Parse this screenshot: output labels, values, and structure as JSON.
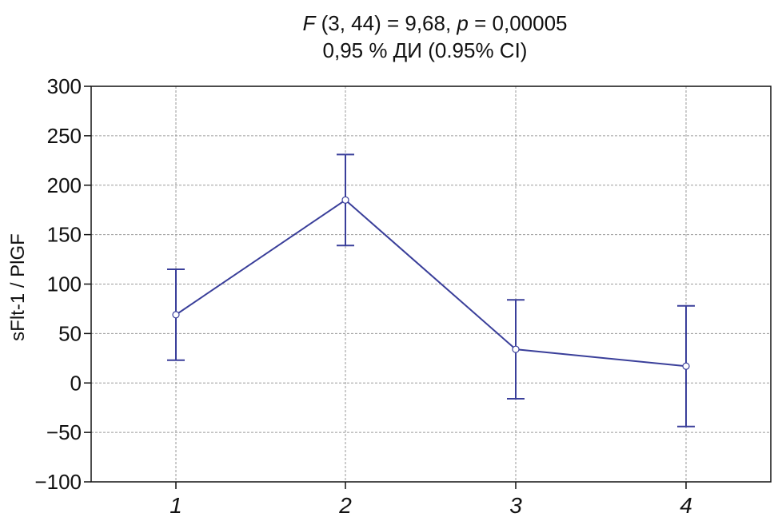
{
  "chart_data": {
    "type": "line",
    "title_line1": {
      "stat_symbol": "F",
      "stat_args": " (3,  44) = 9,68,  ",
      "p_symbol": "p",
      "p_value": " = 0,00005"
    },
    "title_line2": "0,95 % ДИ  (0.95% CI)",
    "xlabel": "",
    "ylabel": "sFlt-1 / PlGF",
    "categories": [
      "1",
      "2",
      "3",
      "4"
    ],
    "ylim": [
      -100,
      300
    ],
    "yticks": [
      300,
      250,
      200,
      150,
      100,
      50,
      0,
      -50,
      -100
    ],
    "ytick_labels": [
      "300",
      "250",
      "200",
      "150",
      "100",
      "50",
      "0",
      "−50",
      "−100"
    ],
    "grid": true,
    "series": [
      {
        "values": [
          69,
          185,
          34,
          17
        ],
        "ci_upper": [
          115,
          231,
          84,
          78
        ],
        "ci_lower": [
          23,
          139,
          -16,
          -44
        ],
        "color": "#3a3f9a"
      }
    ]
  }
}
